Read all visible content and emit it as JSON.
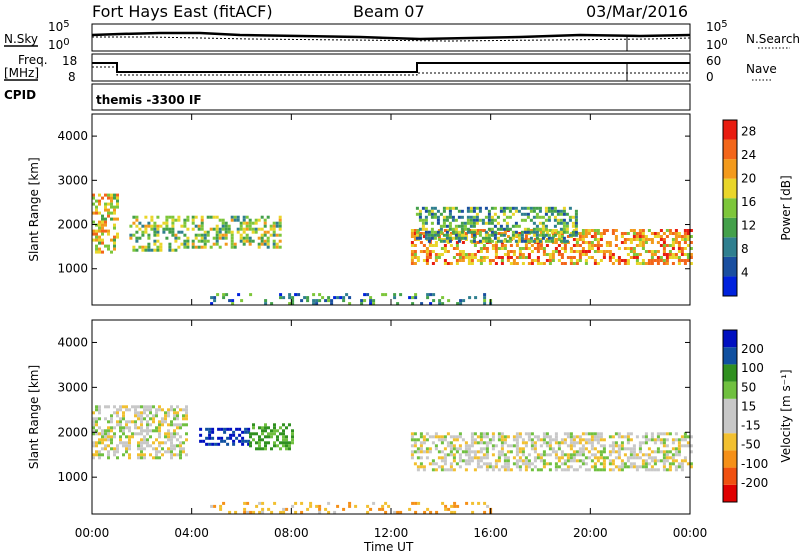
{
  "header": {
    "station": "Fort Hays East (fitACF)",
    "beam": "Beam 07",
    "date": "03/Mar/2016"
  },
  "summary": {
    "nsky_label": "N.Sky",
    "nsky_ticks": [
      "10^5",
      "10^0"
    ],
    "nsearch_label": "N.Search",
    "nsearch_ticks": [
      "10^5",
      "10^0"
    ],
    "freq_label": "Freq.",
    "freq_unit": "[MHz]",
    "freq_ticks": [
      "18",
      "8"
    ],
    "nave_label": "Nave",
    "nave_ticks": [
      "60",
      "0"
    ],
    "cpid_label": "CPID",
    "cpid_text": "themis -3300 IF"
  },
  "colors": {
    "power_scale": [
      "#0022dd",
      "#1a4fa0",
      "#2f7f8f",
      "#43a04a",
      "#7dc63a",
      "#e9d62a",
      "#f39a1c",
      "#f3661a",
      "#e81c10"
    ],
    "velocity_scale": [
      "#e00000",
      "#f05010",
      "#f59018",
      "#f2c030",
      "#c8c8c8",
      "#c8c8c8",
      "#70c040",
      "#309020",
      "#1050a0",
      "#0010c0"
    ]
  },
  "chart_data": [
    {
      "type": "heatmap",
      "title": "Power",
      "xlabel": "",
      "ylabel": "Slant Range [km]",
      "x_ticks": [
        "00:00",
        "04:00",
        "08:00",
        "12:00",
        "16:00",
        "20:00",
        "00:00"
      ],
      "y_ticks": [
        "1000",
        "2000",
        "3000",
        "4000"
      ],
      "xlim_hours": [
        0,
        24
      ],
      "ylim_km": [
        180,
        4500
      ],
      "colorbar_label": "Power [dB]",
      "colorbar_ticks": [
        "4",
        "8",
        "12",
        "16",
        "20",
        "24",
        "28"
      ],
      "colorbar_range": [
        0,
        30
      ],
      "echo_regions": [
        {
          "t": [
            0.0,
            1.0
          ],
          "range_km": [
            1400,
            2700
          ],
          "level_db": 18
        },
        {
          "t": [
            1.5,
            3.8
          ],
          "range_km": [
            1400,
            2200
          ],
          "level_db": 14
        },
        {
          "t": [
            4.0,
            7.6
          ],
          "range_km": [
            1500,
            2200
          ],
          "level_db": 14
        },
        {
          "t": [
            12.8,
            24.0
          ],
          "range_km": [
            1150,
            1900
          ],
          "level_db": 22
        },
        {
          "t": [
            13.0,
            19.5
          ],
          "range_km": [
            1600,
            2400
          ],
          "level_db": 12
        },
        {
          "t": [
            4.5,
            16.0
          ],
          "range_km": [
            200,
            450
          ],
          "level_db": 6
        }
      ]
    },
    {
      "type": "heatmap",
      "title": "Velocity",
      "xlabel": "Time UT",
      "ylabel": "Slant Range [km]",
      "x_ticks": [
        "00:00",
        "04:00",
        "08:00",
        "12:00",
        "16:00",
        "20:00",
        "00:00"
      ],
      "y_ticks": [
        "1000",
        "2000",
        "3000",
        "4000"
      ],
      "xlim_hours": [
        0,
        24
      ],
      "ylim_km": [
        180,
        4500
      ],
      "colorbar_label": "Velocity [m s⁻¹]",
      "colorbar_ticks": [
        "200",
        "100",
        "50",
        "15",
        "-15",
        "-50",
        "-100",
        "-200"
      ],
      "echo_regions": [
        {
          "t": [
            0.0,
            3.8
          ],
          "range_km": [
            1400,
            2600
          ],
          "velocity": 0
        },
        {
          "t": [
            4.3,
            6.3
          ],
          "range_km": [
            1700,
            2100
          ],
          "velocity": 200
        },
        {
          "t": [
            6.3,
            8.0
          ],
          "range_km": [
            1600,
            2200
          ],
          "velocity": 60
        },
        {
          "t": [
            12.8,
            24.0
          ],
          "range_km": [
            1150,
            2000
          ],
          "velocity": 0
        },
        {
          "t": [
            4.5,
            16.0
          ],
          "range_km": [
            200,
            450
          ],
          "velocity": -40
        }
      ]
    }
  ]
}
